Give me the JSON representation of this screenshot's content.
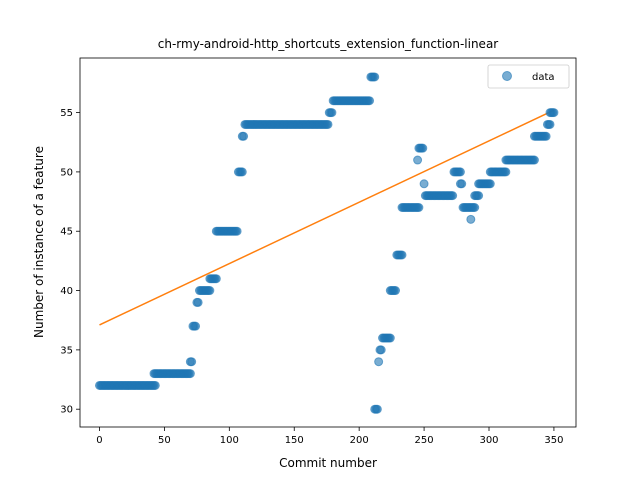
{
  "chart_data": {
    "type": "scatter",
    "title": "ch-rmy-android-http_shortcuts_extension_function-linear",
    "xlabel": "Commit number",
    "ylabel": "Number of instance of a feature",
    "xlim": [
      -15,
      367
    ],
    "ylim": [
      28.5,
      59.6
    ],
    "xticks": [
      0,
      50,
      100,
      150,
      200,
      250,
      300,
      350
    ],
    "yticks": [
      30,
      35,
      40,
      45,
      50,
      55
    ],
    "grid": false,
    "legend": {
      "position": "top-right",
      "entries": [
        "data"
      ]
    },
    "colors": {
      "points": "#1f77b4",
      "fit": "#ff7f0e"
    },
    "segments": [
      {
        "x": [
          0,
          43
        ],
        "y": 32
      },
      {
        "x": [
          42,
          70
        ],
        "y": 33
      },
      {
        "x": [
          70,
          71
        ],
        "y": 34
      },
      {
        "x": [
          72,
          74
        ],
        "y": 37
      },
      {
        "x": [
          75,
          76
        ],
        "y": 39
      },
      {
        "x": [
          77,
          85
        ],
        "y": 40
      },
      {
        "x": [
          85,
          90
        ],
        "y": 41
      },
      {
        "x": [
          90,
          106
        ],
        "y": 45
      },
      {
        "x": [
          107,
          110
        ],
        "y": 50
      },
      {
        "x": [
          110,
          111
        ],
        "y": 53
      },
      {
        "x": [
          112,
          176
        ],
        "y": 54
      },
      {
        "x": [
          177,
          179
        ],
        "y": 55
      },
      {
        "x": [
          180,
          208
        ],
        "y": 56
      },
      {
        "x": [
          209,
          212
        ],
        "y": 58
      },
      {
        "x": [
          212,
          214
        ],
        "y": 30
      },
      {
        "x": [
          215,
          215
        ],
        "y": 34
      },
      {
        "x": [
          216,
          217
        ],
        "y": 35
      },
      {
        "x": [
          218,
          224
        ],
        "y": 36
      },
      {
        "x": [
          224,
          228
        ],
        "y": 40
      },
      {
        "x": [
          229,
          233
        ],
        "y": 43
      },
      {
        "x": [
          233,
          246
        ],
        "y": 47
      },
      {
        "x": [
          245,
          245
        ],
        "y": 51
      },
      {
        "x": [
          246,
          249
        ],
        "y": 52
      },
      {
        "x": [
          250,
          250
        ],
        "y": 49
      },
      {
        "x": [
          251,
          272
        ],
        "y": 48
      },
      {
        "x": [
          273,
          278
        ],
        "y": 50
      },
      {
        "x": [
          278,
          279
        ],
        "y": 49
      },
      {
        "x": [
          280,
          289
        ],
        "y": 47
      },
      {
        "x": [
          286,
          286
        ],
        "y": 46
      },
      {
        "x": [
          289,
          292
        ],
        "y": 48
      },
      {
        "x": [
          292,
          301
        ],
        "y": 49
      },
      {
        "x": [
          301,
          313
        ],
        "y": 50
      },
      {
        "x": [
          313,
          335
        ],
        "y": 51
      },
      {
        "x": [
          335,
          344
        ],
        "y": 53
      },
      {
        "x": [
          345,
          347
        ],
        "y": 54
      },
      {
        "x": [
          347,
          350
        ],
        "y": 55
      }
    ],
    "fit_line": {
      "x": [
        0,
        350
      ],
      "y": [
        37.1,
        55.2
      ]
    }
  }
}
